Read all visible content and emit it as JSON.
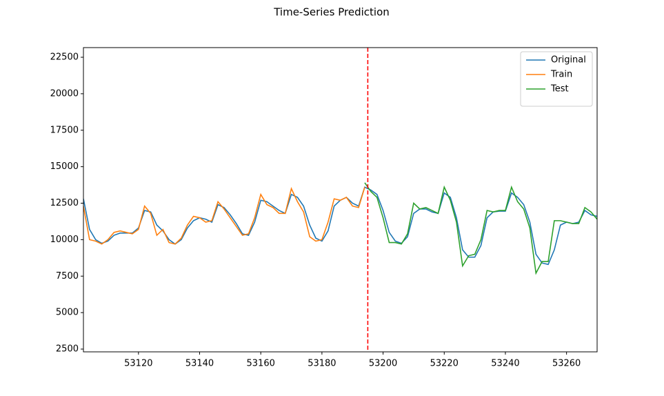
{
  "chart_data": {
    "type": "line",
    "title": "Time-Series Prediction",
    "x": [
      53102,
      53104,
      53106,
      53108,
      53110,
      53112,
      53114,
      53116,
      53118,
      53120,
      53122,
      53124,
      53126,
      53128,
      53130,
      53132,
      53134,
      53136,
      53138,
      53140,
      53142,
      53144,
      53146,
      53148,
      53150,
      53152,
      53154,
      53156,
      53158,
      53160,
      53162,
      53164,
      53166,
      53168,
      53170,
      53172,
      53174,
      53176,
      53178,
      53180,
      53182,
      53184,
      53186,
      53188,
      53190,
      53192,
      53194,
      53196,
      53198,
      53200,
      53202,
      53204,
      53206,
      53208,
      53210,
      53212,
      53214,
      53216,
      53218,
      53220,
      53222,
      53224,
      53226,
      53228,
      53230,
      53232,
      53234,
      53236,
      53238,
      53240,
      53242,
      53244,
      53246,
      53248,
      53250,
      53252,
      53254,
      53256,
      53258,
      53260,
      53262,
      53264,
      53266,
      53268,
      53270
    ],
    "series": [
      {
        "name": "Original",
        "color": "#1f77b4",
        "values": [
          12800,
          10700,
          10000,
          9750,
          9900,
          10300,
          10450,
          10450,
          10450,
          10800,
          12000,
          11900,
          11000,
          10600,
          10000,
          9700,
          10000,
          10800,
          11300,
          11500,
          11400,
          11200,
          12400,
          12200,
          11700,
          11100,
          10400,
          10300,
          11200,
          12700,
          12600,
          12300,
          12000,
          11800,
          13100,
          12900,
          12300,
          11000,
          10100,
          9900,
          10600,
          12300,
          12700,
          12900,
          12500,
          12300,
          13600,
          13400,
          13100,
          12000,
          10500,
          9900,
          9750,
          10200,
          11800,
          12100,
          12100,
          11900,
          11800,
          13200,
          12900,
          11500,
          9300,
          8800,
          8800,
          9600,
          11500,
          11900,
          11950,
          11950,
          13200,
          12900,
          12400,
          11200,
          9000,
          8400,
          8300,
          9300,
          11000,
          11200,
          11100,
          11200,
          12000,
          11700,
          11600
        ]
      },
      {
        "name": "Train",
        "color": "#ff7f0e",
        "values": [
          12300,
          10000,
          9900,
          9700,
          10000,
          10500,
          10600,
          10500,
          10400,
          10700,
          12300,
          11800,
          10300,
          10700,
          9800,
          9700,
          10100,
          11000,
          11600,
          11500,
          11200,
          11300,
          12600,
          12100,
          11500,
          10900,
          10300,
          10400,
          11500,
          13100,
          12400,
          12200,
          11800,
          11800,
          13500,
          12600,
          11900,
          10200,
          9900,
          10000,
          11200,
          12800,
          12700,
          12900,
          12300,
          12200,
          13600,
          null,
          null,
          null,
          null,
          null,
          null,
          null,
          null,
          null,
          null,
          null,
          null,
          null,
          null,
          null,
          null,
          null,
          null,
          null,
          null,
          null,
          null,
          null,
          null,
          null,
          null,
          null,
          null,
          null,
          null,
          null,
          null,
          null,
          null,
          null,
          null,
          null,
          null
        ]
      },
      {
        "name": "Test",
        "color": "#2ca02c",
        "values": [
          null,
          null,
          null,
          null,
          null,
          null,
          null,
          null,
          null,
          null,
          null,
          null,
          null,
          null,
          null,
          null,
          null,
          null,
          null,
          null,
          null,
          null,
          null,
          null,
          null,
          null,
          null,
          null,
          null,
          null,
          null,
          null,
          null,
          null,
          null,
          null,
          null,
          null,
          null,
          null,
          null,
          null,
          null,
          null,
          null,
          null,
          13900,
          13300,
          12900,
          11500,
          9800,
          9800,
          9700,
          10400,
          12500,
          12100,
          12200,
          12000,
          11800,
          13600,
          12700,
          11200,
          8200,
          8900,
          9000,
          10000,
          12000,
          11900,
          12000,
          12000,
          13600,
          12600,
          12100,
          10800,
          7700,
          8500,
          8500,
          11300,
          11300,
          11200,
          11100,
          11100,
          12200,
          11900,
          11400
        ]
      }
    ],
    "vline": 53195,
    "vline_color": "#ff0000",
    "xlim": [
      53102,
      53270
    ],
    "xticks": [
      53120,
      53140,
      53160,
      53180,
      53200,
      53220,
      53240,
      53260
    ],
    "ylim": [
      2311,
      23162
    ],
    "yticks": [
      2500,
      5000,
      7500,
      10000,
      12500,
      15000,
      17500,
      20000,
      22500
    ],
    "legend": "upper right"
  }
}
